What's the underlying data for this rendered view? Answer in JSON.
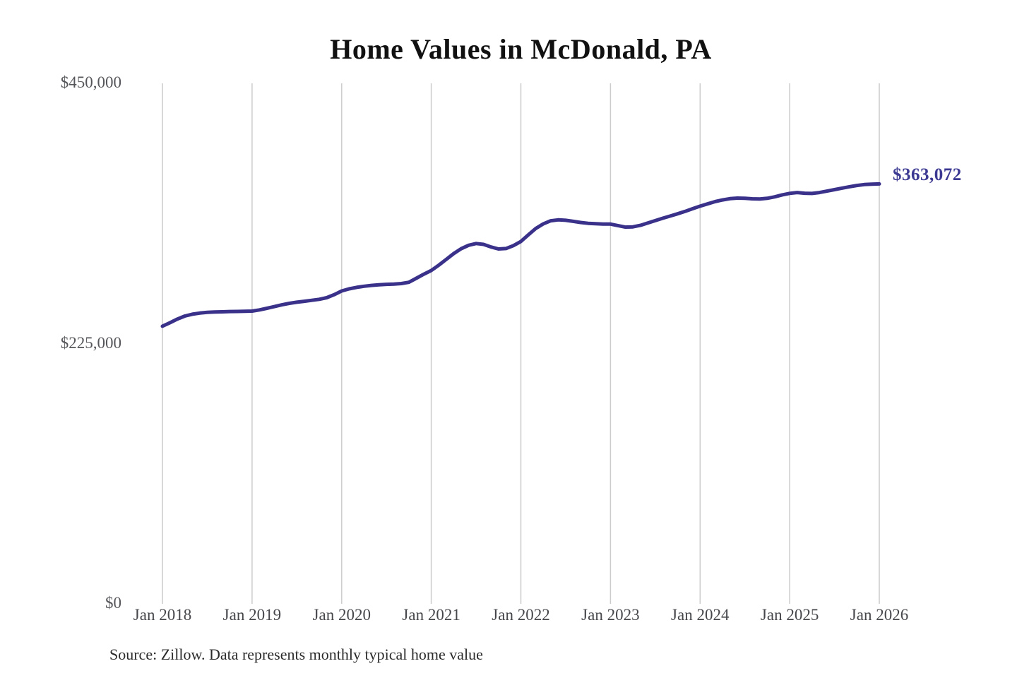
{
  "chart": {
    "title": "Home Values in McDonald, PA",
    "value_label": "$363,072",
    "source": "Source: Zillow. Data represents monthly typical home value",
    "colors": {
      "line": "#39318a",
      "value_label": "#3b3992",
      "gridline": "#cccccc",
      "title": "#111111",
      "y_axis_label": "#55565a",
      "x_axis_label": "#46474b",
      "source_text": "#2b2b2b",
      "background": "#ffffff"
    }
  },
  "chart_data": {
    "type": "line",
    "title": "Home Values in McDonald, PA",
    "xlabel": "",
    "ylabel": "",
    "ylim": [
      0,
      450000
    ],
    "y_ticks": [
      0,
      225000,
      450000
    ],
    "y_tick_labels": [
      "$0",
      "$225,000",
      "$450,000"
    ],
    "x_tick_labels": [
      "Jan 2018",
      "Jan 2019",
      "Jan 2020",
      "Jan 2021",
      "Jan 2022",
      "Jan 2023",
      "Jan 2024",
      "Jan 2025",
      "Jan 2026"
    ],
    "x_start": "2018-01",
    "x_interval": "month",
    "grid": "vertical-only",
    "legend": "none",
    "end_label": {
      "text": "$363,072",
      "value": 363072,
      "x": "2026-01"
    },
    "series": [
      {
        "name": "Monthly typical home value",
        "values": [
          240000,
          243000,
          246200,
          248800,
          250400,
          251400,
          252000,
          252300,
          252500,
          252700,
          252800,
          252900,
          253100,
          254100,
          255500,
          257000,
          258500,
          259800,
          260800,
          261600,
          262400,
          263300,
          264700,
          267300,
          270500,
          272300,
          273600,
          274600,
          275300,
          275800,
          276200,
          276500,
          276900,
          278000,
          281500,
          285000,
          288200,
          292800,
          297800,
          302800,
          307000,
          310000,
          311500,
          310800,
          308500,
          306800,
          307200,
          309700,
          313300,
          319000,
          324500,
          328500,
          331200,
          332000,
          331600,
          330700,
          329700,
          329000,
          328600,
          328400,
          328300,
          327000,
          325700,
          325900,
          327200,
          329200,
          331300,
          333400,
          335300,
          337200,
          339300,
          341600,
          343800,
          345800,
          347700,
          349200,
          350300,
          350800,
          350600,
          350200,
          350000,
          350600,
          351900,
          353600,
          354900,
          355600,
          355000,
          354800,
          355600,
          356800,
          358100,
          359400,
          360600,
          361700,
          362500,
          362900,
          363072
        ]
      }
    ]
  }
}
